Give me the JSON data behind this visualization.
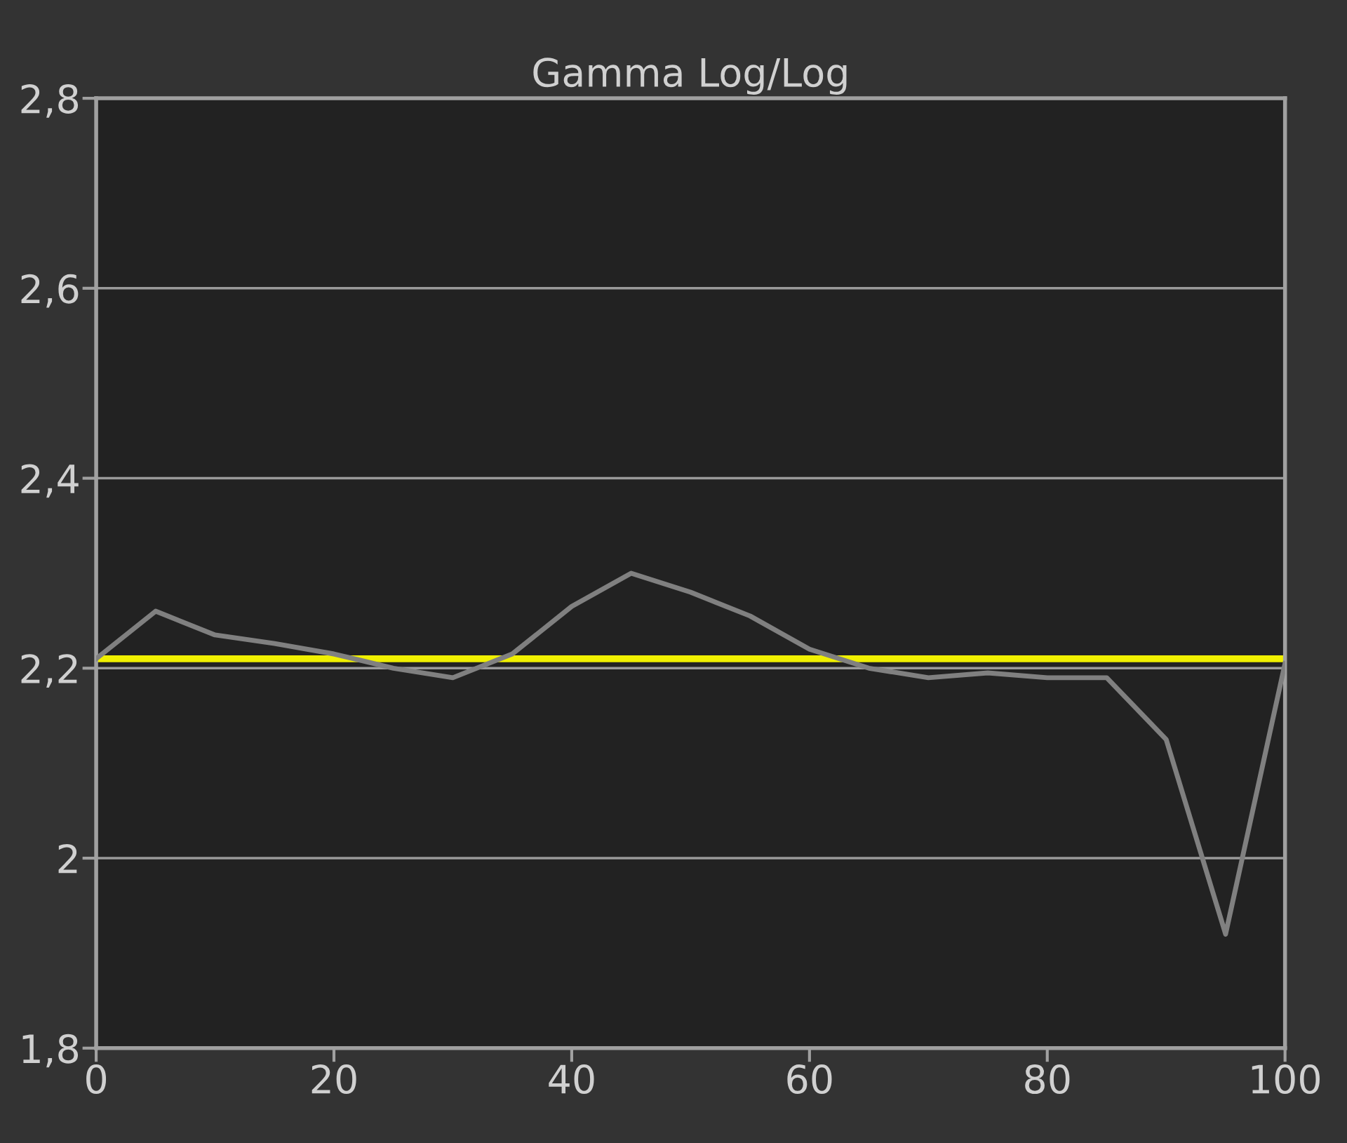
{
  "chart_data": {
    "type": "line",
    "title": "Gamma Log/Log",
    "x": [
      0,
      5,
      10,
      15,
      20,
      25,
      30,
      35,
      40,
      45,
      50,
      55,
      60,
      65,
      70,
      75,
      80,
      85,
      90,
      95,
      100
    ],
    "series": [
      {
        "color": "#808080",
        "values": [
          2.21,
          2.26,
          2.235,
          2.226,
          2.215,
          2.2,
          2.19,
          2.215,
          2.265,
          2.3,
          2.28,
          2.255,
          2.22,
          2.2,
          2.19,
          2.195,
          2.19,
          2.19,
          2.125,
          1.92,
          2.205
        ]
      }
    ],
    "xlim": [
      0,
      100
    ],
    "xticks": [
      0,
      20,
      40,
      60,
      80,
      100
    ],
    "ylim": [
      1.8,
      2.8
    ],
    "yticks": [
      {
        "value": 1.8,
        "label": "1,8"
      },
      {
        "value": 2,
        "label": "2"
      },
      {
        "value": 2.2,
        "label": "2,2"
      },
      {
        "value": 2.4,
        "label": "2,4"
      },
      {
        "value": 2.6,
        "label": "2,6"
      },
      {
        "value": 2.8,
        "label": "2,8"
      }
    ],
    "ref_lines": [
      {
        "axis": "y",
        "value": 2.21,
        "color": "#f0f000"
      }
    ],
    "grid": "y",
    "marker": "none",
    "line_style": "solid"
  }
}
